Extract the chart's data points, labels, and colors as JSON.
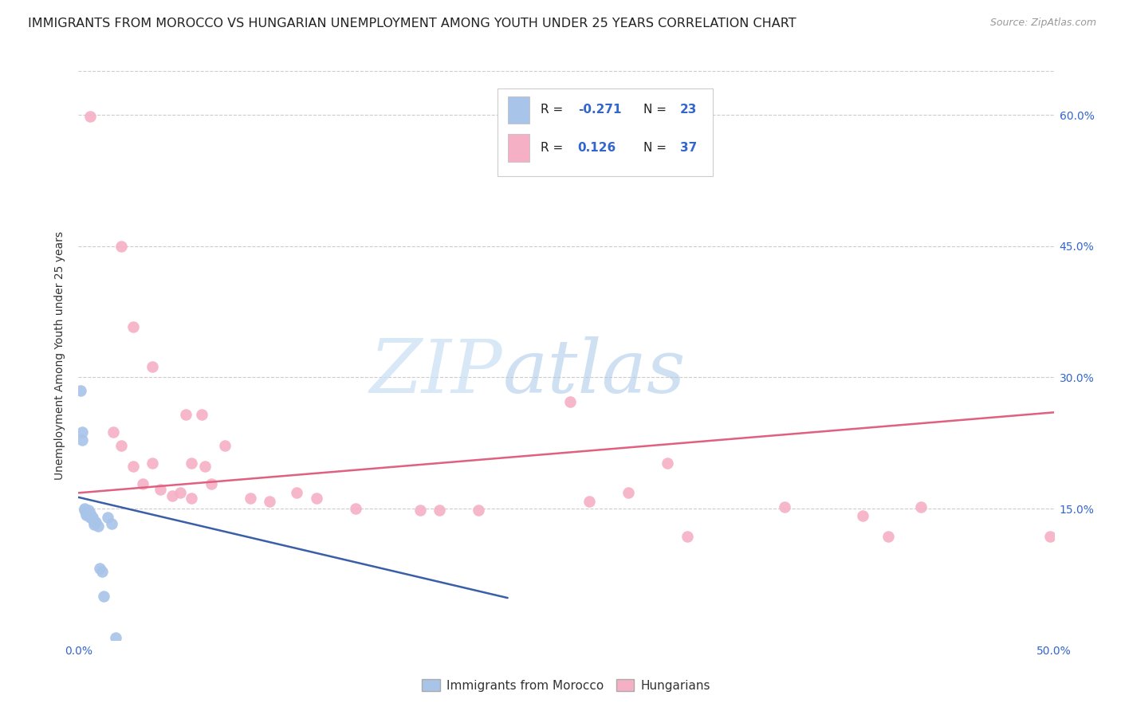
{
  "title": "IMMIGRANTS FROM MOROCCO VS HUNGARIAN UNEMPLOYMENT AMONG YOUTH UNDER 25 YEARS CORRELATION CHART",
  "source": "Source: ZipAtlas.com",
  "ylabel": "Unemployment Among Youth under 25 years",
  "xlim": [
    0,
    0.5
  ],
  "ylim": [
    0,
    0.65
  ],
  "yticks": [
    0.15,
    0.3,
    0.45,
    0.6
  ],
  "xticks": [
    0.0,
    0.1,
    0.2,
    0.3,
    0.4,
    0.5
  ],
  "xtick_labels": [
    "0.0%",
    "",
    "",
    "",
    "",
    "50.0%"
  ],
  "right_ytick_labels": [
    "15.0%",
    "30.0%",
    "45.0%",
    "60.0%"
  ],
  "blue_label": "Immigrants from Morocco",
  "pink_label": "Hungarians",
  "blue_R": "-0.271",
  "blue_N": "23",
  "pink_R": "0.126",
  "pink_N": "37",
  "blue_color": "#a8c4e8",
  "pink_color": "#f5b0c5",
  "blue_line_color": "#3a5fa8",
  "pink_line_color": "#e06080",
  "accent_color": "#3366cc",
  "blue_scatter": [
    [
      0.001,
      0.285
    ],
    [
      0.002,
      0.238
    ],
    [
      0.002,
      0.228
    ],
    [
      0.003,
      0.15
    ],
    [
      0.003,
      0.148
    ],
    [
      0.004,
      0.145
    ],
    [
      0.004,
      0.143
    ],
    [
      0.005,
      0.148
    ],
    [
      0.005,
      0.143
    ],
    [
      0.006,
      0.145
    ],
    [
      0.006,
      0.14
    ],
    [
      0.007,
      0.14
    ],
    [
      0.007,
      0.138
    ],
    [
      0.008,
      0.135
    ],
    [
      0.008,
      0.132
    ],
    [
      0.009,
      0.135
    ],
    [
      0.01,
      0.13
    ],
    [
      0.011,
      0.082
    ],
    [
      0.012,
      0.078
    ],
    [
      0.013,
      0.05
    ],
    [
      0.015,
      0.14
    ],
    [
      0.017,
      0.133
    ],
    [
      0.019,
      0.003
    ]
  ],
  "pink_scatter": [
    [
      0.006,
      0.598
    ],
    [
      0.022,
      0.45
    ],
    [
      0.028,
      0.358
    ],
    [
      0.038,
      0.312
    ],
    [
      0.018,
      0.238
    ],
    [
      0.055,
      0.258
    ],
    [
      0.063,
      0.258
    ],
    [
      0.022,
      0.222
    ],
    [
      0.028,
      0.198
    ],
    [
      0.038,
      0.202
    ],
    [
      0.058,
      0.202
    ],
    [
      0.065,
      0.198
    ],
    [
      0.075,
      0.222
    ],
    [
      0.068,
      0.178
    ],
    [
      0.033,
      0.178
    ],
    [
      0.042,
      0.172
    ],
    [
      0.052,
      0.168
    ],
    [
      0.048,
      0.165
    ],
    [
      0.058,
      0.162
    ],
    [
      0.088,
      0.162
    ],
    [
      0.098,
      0.158
    ],
    [
      0.112,
      0.168
    ],
    [
      0.122,
      0.162
    ],
    [
      0.142,
      0.15
    ],
    [
      0.175,
      0.148
    ],
    [
      0.185,
      0.148
    ],
    [
      0.205,
      0.148
    ],
    [
      0.252,
      0.272
    ],
    [
      0.262,
      0.158
    ],
    [
      0.282,
      0.168
    ],
    [
      0.302,
      0.202
    ],
    [
      0.312,
      0.118
    ],
    [
      0.362,
      0.152
    ],
    [
      0.402,
      0.142
    ],
    [
      0.415,
      0.118
    ],
    [
      0.432,
      0.152
    ],
    [
      0.498,
      0.118
    ]
  ],
  "blue_trendline_x": [
    0.0,
    0.22
  ],
  "blue_trendline_y": [
    0.163,
    0.048
  ],
  "pink_trendline_x": [
    0.0,
    0.5
  ],
  "pink_trendline_y": [
    0.168,
    0.26
  ],
  "watermark_zip": "ZIP",
  "watermark_atlas": "atlas",
  "background_color": "#ffffff",
  "title_fontsize": 11.5,
  "axis_label_fontsize": 10,
  "tick_fontsize": 10,
  "scatter_size": 110
}
